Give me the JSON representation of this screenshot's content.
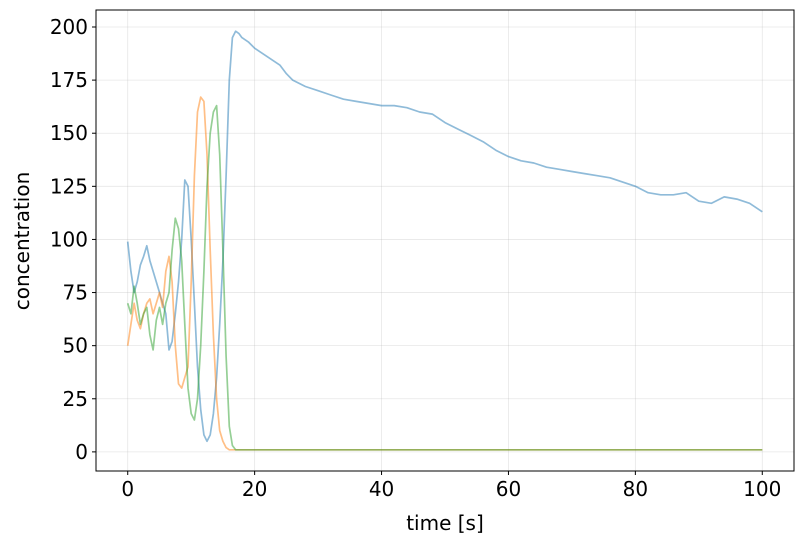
{
  "chart_data": {
    "type": "line",
    "title": "",
    "xlabel": "time [s]",
    "ylabel": "concentration",
    "xlim": [
      -5,
      105
    ],
    "ylim": [
      -9,
      208
    ],
    "xticks": [
      0,
      20,
      40,
      60,
      80,
      100
    ],
    "yticks": [
      0,
      25,
      50,
      75,
      100,
      125,
      150,
      175,
      200
    ],
    "grid": true,
    "legend": "none",
    "series": [
      {
        "color": "#1f77b4",
        "x": [
          0,
          0.5,
          1,
          1.5,
          2,
          2.5,
          3,
          3.5,
          4,
          4.5,
          5,
          5.5,
          6,
          6.5,
          7,
          7.5,
          8,
          8.5,
          9,
          9.5,
          10,
          10.5,
          11,
          11.5,
          12,
          12.5,
          13,
          13.5,
          14,
          14.5,
          15,
          15.5,
          16,
          16.5,
          17,
          17.5,
          18,
          19,
          20,
          22,
          24,
          25,
          26,
          28,
          30,
          32,
          34,
          36,
          38,
          40,
          42,
          44,
          46,
          48,
          50,
          52,
          54,
          56,
          58,
          60,
          62,
          64,
          66,
          68,
          70,
          72,
          74,
          76,
          78,
          80,
          82,
          84,
          86,
          88,
          90,
          92,
          94,
          96,
          98,
          100
        ],
        "y": [
          99,
          85,
          75,
          80,
          88,
          92,
          97,
          90,
          85,
          80,
          75,
          70,
          65,
          48,
          52,
          65,
          80,
          100,
          128,
          125,
          100,
          70,
          40,
          20,
          8,
          5,
          8,
          18,
          35,
          60,
          90,
          130,
          175,
          195,
          198,
          197,
          195,
          193,
          190,
          186,
          182,
          178,
          175,
          172,
          170,
          168,
          166,
          165,
          164,
          163,
          163,
          162,
          160,
          159,
          155,
          152,
          149,
          146,
          142,
          139,
          137,
          136,
          134,
          133,
          132,
          131,
          130,
          129,
          127,
          125,
          122,
          121,
          121,
          122,
          118,
          117,
          120,
          119,
          117,
          113
        ]
      },
      {
        "color": "#ff7f0e",
        "x": [
          0,
          0.5,
          1,
          1.5,
          2,
          2.5,
          3,
          3.5,
          4,
          4.5,
          5,
          5.5,
          6,
          6.5,
          7,
          7.5,
          8,
          8.5,
          9,
          9.5,
          10,
          10.5,
          11,
          11.5,
          12,
          12.5,
          13,
          13.5,
          14,
          14.5,
          15,
          15.5,
          16,
          16.5,
          17,
          18,
          20,
          30,
          40,
          50,
          60,
          70,
          80,
          90,
          100
        ],
        "y": [
          50,
          60,
          70,
          62,
          58,
          65,
          70,
          72,
          65,
          70,
          75,
          68,
          85,
          92,
          80,
          50,
          32,
          30,
          35,
          40,
          80,
          130,
          160,
          167,
          165,
          140,
          95,
          55,
          25,
          10,
          5,
          2,
          1,
          1,
          1,
          1,
          1,
          1,
          1,
          1,
          1,
          1,
          1,
          1,
          1
        ]
      },
      {
        "color": "#2ca02c",
        "x": [
          0,
          0.5,
          1,
          1.5,
          2,
          2.5,
          3,
          3.5,
          4,
          4.5,
          5,
          5.5,
          6,
          6.5,
          7,
          7.5,
          8,
          8.5,
          9,
          9.5,
          10,
          10.5,
          11,
          11.5,
          12,
          12.5,
          13,
          13.5,
          14,
          14.5,
          15,
          15.5,
          16,
          16.5,
          17,
          18,
          20,
          30,
          40,
          50,
          60,
          70,
          80,
          90,
          100
        ],
        "y": [
          70,
          65,
          78,
          70,
          60,
          65,
          68,
          55,
          48,
          62,
          68,
          60,
          70,
          75,
          95,
          110,
          105,
          90,
          60,
          30,
          18,
          15,
          25,
          50,
          85,
          125,
          150,
          160,
          163,
          140,
          95,
          45,
          12,
          3,
          1,
          1,
          1,
          1,
          1,
          1,
          1,
          1,
          1,
          1,
          1
        ]
      }
    ]
  }
}
